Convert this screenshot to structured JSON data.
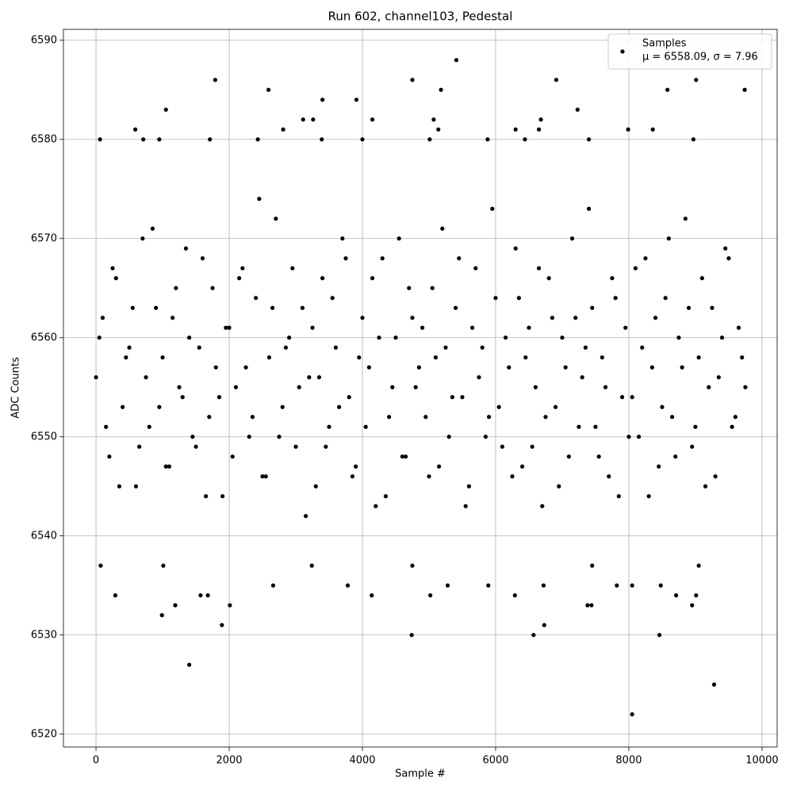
{
  "chart_data": {
    "type": "scatter",
    "title": "Run 602, channel103, Pedestal",
    "xlabel": "Sample #",
    "ylabel": "ADC Counts",
    "annotation": "μ = 6558.09, σ = 7.96",
    "legend": "upper right",
    "grid": true,
    "xlim": [
      -489,
      10227
    ],
    "ylim": [
      6518.7,
      6591.1
    ],
    "xticks": [
      0,
      2000,
      4000,
      6000,
      8000,
      10000
    ],
    "yticks": [
      6520,
      6530,
      6540,
      6550,
      6560,
      6570,
      6580,
      6590
    ],
    "x": [
      1400,
      8050,
      9280,
      4740,
      6570,
      8460,
      1890,
      6730,
      990,
      1190,
      2010,
      7380,
      7440,
      8950,
      290,
      1680,
      1570,
      4140,
      5020,
      6290,
      8710,
      9010,
      1790,
      4750,
      6910,
      9010,
      5410,
      2590,
      5180,
      8580,
      9740,
      3400,
      3910,
      1050,
      7230,
      3110,
      3260,
      4150,
      5070,
      6680,
      590,
      2810,
      5140,
      6300,
      6650,
      7990,
      8360,
      60,
      710,
      950,
      1710,
      2430,
      3390,
      4000,
      5010,
      5880,
      6440,
      7400,
      8970,
      5280,
      2660,
      3780,
      8050,
      5890,
      6720,
      7820,
      8480,
      70,
      1010,
      3240,
      4750,
      7450,
      9050,
      0,
      100,
      200,
      300,
      400,
      500,
      600,
      700,
      800,
      900,
      1000,
      1100,
      1200,
      1300,
      1400,
      1500,
      1600,
      1700,
      1800,
      1900,
      2000,
      2100,
      2200,
      2300,
      2400,
      2500,
      2600,
      2700,
      2800,
      2900,
      3000,
      3100,
      3200,
      3300,
      3400,
      3500,
      3600,
      3700,
      3800,
      3900,
      4000,
      4100,
      4200,
      4300,
      4400,
      4500,
      4600,
      4700,
      4800,
      4900,
      5000,
      5100,
      5200,
      5300,
      5400,
      5500,
      5600,
      5700,
      5800,
      5900,
      6000,
      6100,
      6200,
      6300,
      6400,
      6500,
      6600,
      6700,
      6800,
      6900,
      7000,
      7100,
      7200,
      7300,
      7400,
      7500,
      7600,
      7700,
      7800,
      7900,
      8000,
      8100,
      8200,
      8300,
      8400,
      8500,
      8600,
      8700,
      8800,
      8900,
      9000,
      9100,
      9200,
      9300,
      9400,
      9500,
      9600,
      9700,
      50,
      150,
      250,
      350,
      450,
      550,
      650,
      750,
      850,
      950,
      1050,
      1150,
      1250,
      1350,
      1450,
      1550,
      1650,
      1750,
      1850,
      1950,
      2050,
      2150,
      2250,
      2350,
      2450,
      2550,
      2650,
      2750,
      2850,
      2950,
      3050,
      3150,
      3250,
      3350,
      3450,
      3550,
      3650,
      3750,
      3850,
      3950,
      4050,
      4150,
      4250,
      4350,
      4450,
      4550,
      4650,
      4750,
      4850,
      4950,
      5050,
      5150,
      5250,
      5350,
      5450,
      5550,
      5650,
      5750,
      5850,
      5950,
      6050,
      6150,
      6250,
      6350,
      6450,
      6550,
      6650,
      6750,
      6850,
      6950,
      7050,
      7150,
      7250,
      7350,
      7450,
      7550,
      7650,
      7750,
      7850,
      7950,
      8050,
      8150,
      8250,
      8350,
      8450,
      8550,
      8650,
      8750,
      8850,
      8950,
      9050,
      9150,
      9250,
      9350,
      9450,
      9550,
      9650,
      9750
    ],
    "series": [
      {
        "name": "Samples",
        "color": "#000000",
        "values": [
          6527,
          6522,
          6525,
          6530,
          6530,
          6530,
          6531,
          6531,
          6532,
          6533,
          6533,
          6533,
          6533,
          6533,
          6534,
          6534,
          6534,
          6534,
          6534,
          6534,
          6534,
          6534,
          6586,
          6586,
          6586,
          6586,
          6588,
          6585,
          6585,
          6585,
          6585,
          6584,
          6584,
          6583,
          6583,
          6582,
          6582,
          6582,
          6582,
          6582,
          6581,
          6581,
          6581,
          6581,
          6581,
          6581,
          6581,
          6580,
          6580,
          6580,
          6580,
          6580,
          6580,
          6580,
          6580,
          6580,
          6580,
          6580,
          6580,
          6535,
          6535,
          6535,
          6535,
          6535,
          6535,
          6535,
          6535,
          6537,
          6537,
          6537,
          6537,
          6537,
          6537,
          6556,
          6562,
          6548,
          6566,
          6553,
          6559,
          6545,
          6570,
          6551,
          6563,
          6558,
          6547,
          6565,
          6554,
          6560,
          6549,
          6568,
          6552,
          6557,
          6544,
          6561,
          6555,
          6567,
          6550,
          6564,
          6546,
          6558,
          6572,
          6553,
          6560,
          6549,
          6563,
          6556,
          6545,
          6566,
          6551,
          6559,
          6570,
          6554,
          6547,
          6562,
          6557,
          6543,
          6568,
          6552,
          6560,
          6548,
          6565,
          6555,
          6561,
          6546,
          6558,
          6571,
          6550,
          6563,
          6554,
          6545,
          6567,
          6559,
          6552,
          6564,
          6549,
          6557,
          6569,
          6547,
          6561,
          6555,
          6543,
          6566,
          6553,
          6560,
          6548,
          6562,
          6556,
          6573,
          6551,
          6558,
          6546,
          6564,
          6554,
          6550,
          6567,
          6559,
          6544,
          6562,
          6553,
          6570,
          6548,
          6557,
          6563,
          6551,
          6566,
          6555,
          6546,
          6560,
          6568,
          6552,
          6558,
          6560,
          6551,
          6567,
          6545,
          6558,
          6563,
          6549,
          6556,
          6571,
          6553,
          6547,
          6562,
          6555,
          6569,
          6550,
          6559,
          6544,
          6565,
          6554,
          6561,
          6548,
          6566,
          6557,
          6552,
          6574,
          6546,
          6563,
          6550,
          6559,
          6567,
          6555,
          6542,
          6561,
          6556,
          6549,
          6564,
          6553,
          6568,
          6546,
          6558,
          6551,
          6566,
          6560,
          6544,
          6555,
          6570,
          6548,
          6562,
          6557,
          6552,
          6565,
          6547,
          6559,
          6554,
          6568,
          6543,
          6561,
          6556,
          6550,
          6573,
          6553,
          6560,
          6546,
          6564,
          6558,
          6549,
          6567,
          6552,
          6562,
          6545,
          6557,
          6570,
          6551,
          6559,
          6563,
          6548,
          6555,
          6566,
          6544,
          6561,
          6554,
          6550,
          6568,
          6557,
          6547,
          6564,
          6552,
          6560,
          6572,
          6549,
          6558,
          6545,
          6563,
          6556,
          6569,
          6551,
          6561,
          6555
        ]
      }
    ]
  }
}
